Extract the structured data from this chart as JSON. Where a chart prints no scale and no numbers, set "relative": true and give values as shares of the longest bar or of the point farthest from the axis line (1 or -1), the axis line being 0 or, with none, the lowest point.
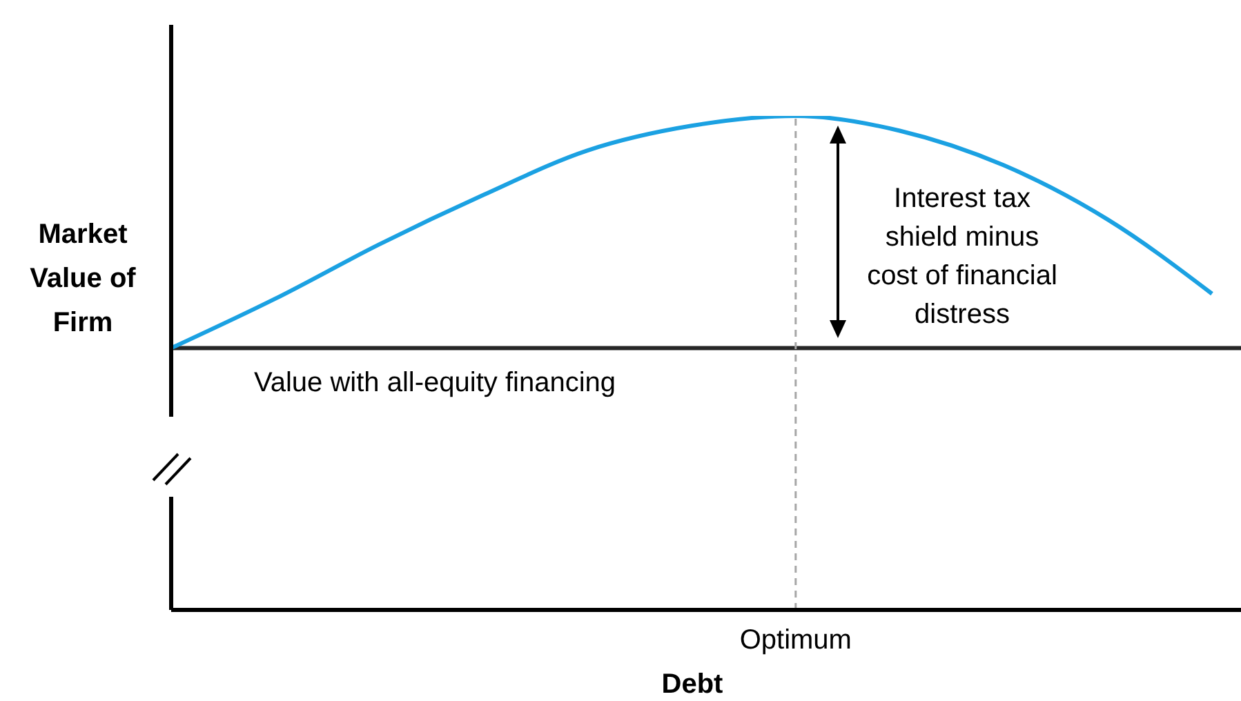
{
  "chart_data": {
    "type": "line",
    "relative": true,
    "categories": [
      null,
      null,
      null,
      null,
      null,
      null,
      null,
      null,
      null,
      null,
      null
    ],
    "series": [
      {
        "color": "#1ba1e2",
        "values": [
          0.53,
          0.63,
          0.74,
          0.84,
          0.93,
          0.98,
          1,
          0.97,
          0.9,
          0.79,
          0.64
        ]
      }
    ],
    "xlabel": "Debt",
    "ylabel": "Market Value of Firm",
    "ref_lines": [
      {
        "axis": "y",
        "value": 0.53,
        "label": "Value with all-equity financing",
        "color": "#262626"
      },
      {
        "axis": "x",
        "value": "Optimum",
        "color": "#a6a6a6",
        "line_style": "dashed"
      }
    ],
    "annotations": [
      "Interest tax\nshield minus\ncost of financial\ndistress"
    ],
    "marker": "none",
    "line_style": "solid"
  }
}
